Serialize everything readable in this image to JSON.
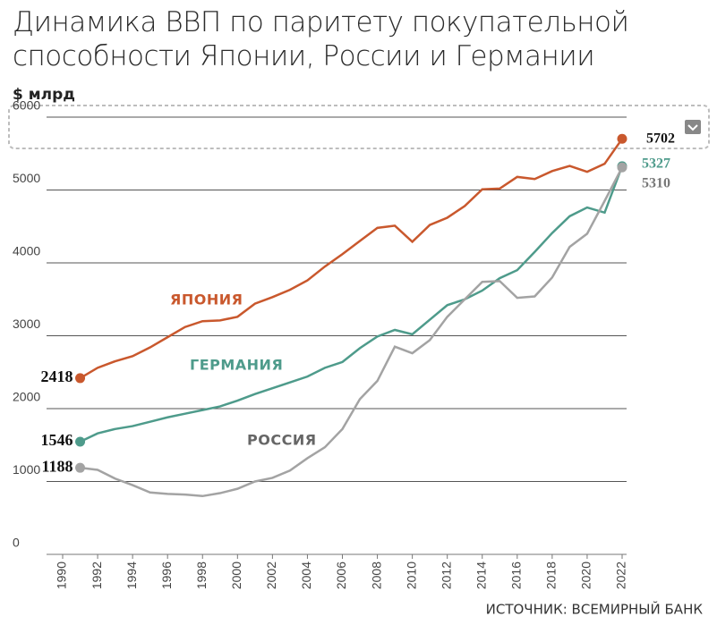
{
  "chart_data": {
    "type": "line",
    "title": "Динамика ВВП по паритету покупательной способности Японии, России и Германии",
    "y_label": "$ млрд",
    "source": "ИСТОЧНИК: ВСЕМИРНЫЙ БАНК",
    "x": [
      1991,
      1992,
      1993,
      1994,
      1995,
      1996,
      1997,
      1998,
      1999,
      2000,
      2001,
      2002,
      2003,
      2004,
      2005,
      2006,
      2007,
      2008,
      2009,
      2010,
      2011,
      2012,
      2013,
      2014,
      2015,
      2016,
      2017,
      2018,
      2019,
      2020,
      2021,
      2022
    ],
    "series": [
      {
        "name": "ЯПОНИЯ",
        "color": "#c9582d",
        "values": [
          2418,
          2560,
          2650,
          2720,
          2840,
          2980,
          3120,
          3200,
          3210,
          3260,
          3440,
          3530,
          3630,
          3760,
          3950,
          4120,
          4300,
          4480,
          4510,
          4290,
          4520,
          4620,
          4780,
          5010,
          5020,
          5180,
          5150,
          5260,
          5330,
          5250,
          5360,
          5702
        ]
      },
      {
        "name": "ГЕРМАНИЯ",
        "color": "#4e9b8b",
        "values": [
          1546,
          1660,
          1720,
          1760,
          1820,
          1880,
          1930,
          1980,
          2030,
          2110,
          2200,
          2280,
          2360,
          2440,
          2560,
          2640,
          2830,
          2990,
          3080,
          3020,
          3220,
          3420,
          3500,
          3620,
          3790,
          3900,
          4150,
          4410,
          4640,
          4760,
          4690,
          5327
        ]
      },
      {
        "name": "РОССИЯ",
        "color": "#a3a3a3",
        "values": [
          1188,
          1160,
          1040,
          950,
          850,
          830,
          820,
          800,
          840,
          900,
          1000,
          1050,
          1150,
          1320,
          1470,
          1720,
          2130,
          2380,
          2850,
          2760,
          2940,
          3260,
          3500,
          3740,
          3750,
          3520,
          3540,
          3800,
          4220,
          4400,
          4850,
          5310
        ]
      }
    ],
    "xlim": [
      1990,
      2022
    ],
    "xticks": [
      1990,
      1992,
      1994,
      1996,
      1998,
      2000,
      2002,
      2004,
      2006,
      2008,
      2010,
      2012,
      2014,
      2016,
      2018,
      2020,
      2022
    ],
    "ylim": [
      0,
      6000
    ],
    "yticks": [
      0,
      1000,
      2000,
      3000,
      4000,
      5000,
      6000
    ],
    "grid": true
  }
}
